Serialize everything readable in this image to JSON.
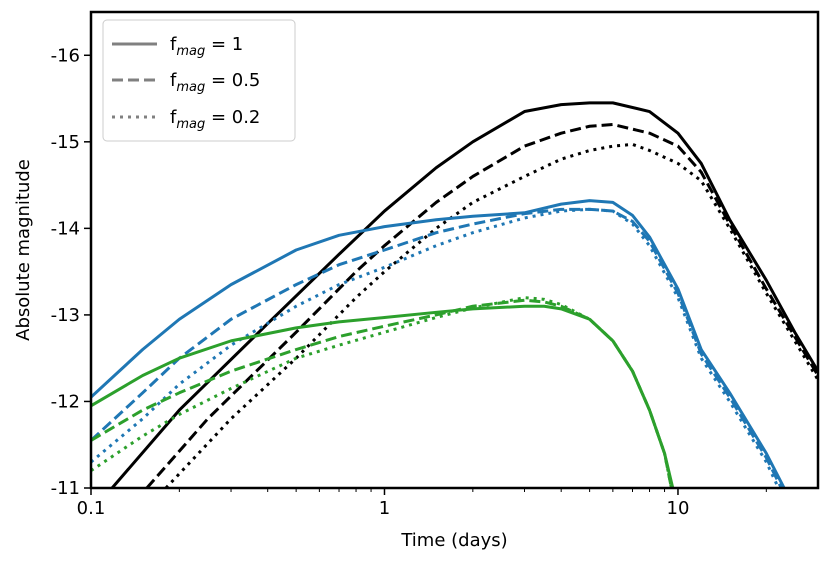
{
  "chart_data": {
    "type": "line",
    "xlabel": "Time (days)",
    "ylabel": "Absolute magnitude",
    "xscale": "log",
    "xlim": [
      0.1,
      30
    ],
    "ylim": [
      -11,
      -16.5
    ],
    "y_inverted": true,
    "xticks": [
      {
        "value": 0.1,
        "label": "0.1"
      },
      {
        "value": 1,
        "label": "1"
      },
      {
        "value": 10,
        "label": "10"
      }
    ],
    "yticks": [
      {
        "value": -11,
        "label": "-11"
      },
      {
        "value": -12,
        "label": "-12"
      },
      {
        "value": -13,
        "label": "-13"
      },
      {
        "value": -14,
        "label": "-14"
      },
      {
        "value": -15,
        "label": "-15"
      },
      {
        "value": -16,
        "label": "-16"
      }
    ],
    "legend": {
      "position": "top-left",
      "color": "#808080",
      "entries": [
        {
          "main": "f",
          "sub": "mag",
          "rest": " = 1",
          "style": "solid"
        },
        {
          "main": "f",
          "sub": "mag",
          "rest": " = 0.5",
          "style": "dashed"
        },
        {
          "main": "f",
          "sub": "mag",
          "rest": " = 0.2",
          "style": "dotted"
        }
      ]
    },
    "series": [
      {
        "name": "black f_mag=1",
        "color": "#000000",
        "style": "solid",
        "x": [
          0.118,
          0.2,
          0.4,
          0.7,
          1.0,
          1.5,
          2,
          3,
          4,
          5,
          6,
          8,
          10,
          12,
          15,
          20,
          25,
          30
        ],
        "y": [
          -11.0,
          -11.9,
          -12.9,
          -13.7,
          -14.2,
          -14.7,
          -15.0,
          -15.35,
          -15.43,
          -15.45,
          -15.45,
          -15.35,
          -15.1,
          -14.75,
          -14.1,
          -13.4,
          -12.8,
          -12.35
        ]
      },
      {
        "name": "black f_mag=0.5",
        "color": "#000000",
        "style": "dashed",
        "x": [
          0.155,
          0.25,
          0.5,
          0.8,
          1.0,
          1.5,
          2,
          3,
          4,
          5,
          6,
          8,
          10,
          12,
          15,
          20,
          25,
          30
        ],
        "y": [
          -11.0,
          -11.8,
          -12.8,
          -13.5,
          -13.8,
          -14.3,
          -14.6,
          -14.95,
          -15.1,
          -15.18,
          -15.2,
          -15.1,
          -14.95,
          -14.65,
          -14.05,
          -13.3,
          -12.75,
          -12.3
        ]
      },
      {
        "name": "black f_mag=0.2",
        "color": "#000000",
        "style": "dotted",
        "x": [
          0.18,
          0.3,
          0.5,
          0.8,
          1.0,
          1.5,
          2,
          3,
          4,
          5,
          6,
          7,
          8,
          10,
          12,
          15,
          20,
          25,
          30
        ],
        "y": [
          -11.0,
          -11.8,
          -12.5,
          -13.2,
          -13.5,
          -14.0,
          -14.3,
          -14.6,
          -14.8,
          -14.9,
          -14.95,
          -14.97,
          -14.9,
          -14.75,
          -14.55,
          -14.0,
          -13.25,
          -12.7,
          -12.25
        ]
      },
      {
        "name": "blue f_mag=1",
        "color": "#1f77b4",
        "style": "solid",
        "x": [
          0.1,
          0.15,
          0.2,
          0.3,
          0.5,
          0.7,
          1.0,
          1.5,
          2,
          3,
          4,
          5,
          6,
          7,
          8,
          10,
          12,
          15,
          20,
          23
        ],
        "y": [
          -12.05,
          -12.6,
          -12.95,
          -13.35,
          -13.75,
          -13.92,
          -14.02,
          -14.1,
          -14.14,
          -14.18,
          -14.28,
          -14.32,
          -14.3,
          -14.15,
          -13.9,
          -13.3,
          -12.6,
          -12.1,
          -11.4,
          -11.0
        ]
      },
      {
        "name": "blue f_mag=0.5",
        "color": "#1f77b4",
        "style": "dashed",
        "x": [
          0.1,
          0.15,
          0.2,
          0.3,
          0.5,
          0.7,
          1.0,
          1.5,
          2,
          3,
          4,
          5,
          6,
          7,
          8,
          10,
          12,
          15,
          20,
          22.5
        ],
        "y": [
          -11.55,
          -12.1,
          -12.5,
          -12.95,
          -13.35,
          -13.58,
          -13.75,
          -13.95,
          -14.05,
          -14.17,
          -14.22,
          -14.22,
          -14.2,
          -14.08,
          -13.85,
          -13.25,
          -12.55,
          -12.05,
          -11.35,
          -11.0
        ]
      },
      {
        "name": "blue f_mag=0.2",
        "color": "#1f77b4",
        "style": "dotted",
        "x": [
          0.1,
          0.15,
          0.2,
          0.3,
          0.5,
          0.7,
          1.0,
          1.5,
          2,
          3,
          4,
          5,
          6,
          7,
          8,
          10,
          12,
          15,
          20,
          22
        ],
        "y": [
          -11.3,
          -11.8,
          -12.2,
          -12.65,
          -13.1,
          -13.35,
          -13.55,
          -13.8,
          -13.95,
          -14.12,
          -14.2,
          -14.22,
          -14.2,
          -14.05,
          -13.8,
          -13.2,
          -12.5,
          -12.0,
          -11.3,
          -11.0
        ]
      },
      {
        "name": "green f_mag=1",
        "color": "#2ca02c",
        "style": "solid",
        "x": [
          0.1,
          0.15,
          0.2,
          0.3,
          0.5,
          0.7,
          1.0,
          1.5,
          2,
          3,
          3.5,
          4,
          5,
          6,
          7,
          8,
          9,
          9.6
        ],
        "y": [
          -11.95,
          -12.3,
          -12.5,
          -12.7,
          -12.85,
          -12.92,
          -12.97,
          -13.03,
          -13.07,
          -13.1,
          -13.1,
          -13.07,
          -12.95,
          -12.7,
          -12.35,
          -11.9,
          -11.4,
          -11.0
        ]
      },
      {
        "name": "green f_mag=0.5",
        "color": "#2ca02c",
        "style": "dashed",
        "x": [
          0.1,
          0.15,
          0.2,
          0.3,
          0.5,
          0.7,
          1.0,
          1.5,
          2,
          3,
          3.5,
          4,
          5,
          6,
          7,
          8,
          9,
          9.5
        ],
        "y": [
          -11.55,
          -11.9,
          -12.1,
          -12.35,
          -12.6,
          -12.75,
          -12.87,
          -13.0,
          -13.1,
          -13.17,
          -13.15,
          -13.1,
          -12.95,
          -12.7,
          -12.35,
          -11.9,
          -11.4,
          -11.0
        ]
      },
      {
        "name": "green f_mag=0.2",
        "color": "#2ca02c",
        "style": "dotted",
        "x": [
          0.1,
          0.15,
          0.2,
          0.3,
          0.5,
          0.7,
          1.0,
          1.5,
          2,
          3,
          3.5,
          4,
          5,
          6,
          7,
          8,
          9,
          9.5
        ],
        "y": [
          -11.2,
          -11.6,
          -11.85,
          -12.15,
          -12.5,
          -12.65,
          -12.8,
          -12.97,
          -13.08,
          -13.2,
          -13.18,
          -13.12,
          -12.95,
          -12.7,
          -12.35,
          -11.9,
          -11.4,
          -11.0
        ]
      }
    ]
  }
}
